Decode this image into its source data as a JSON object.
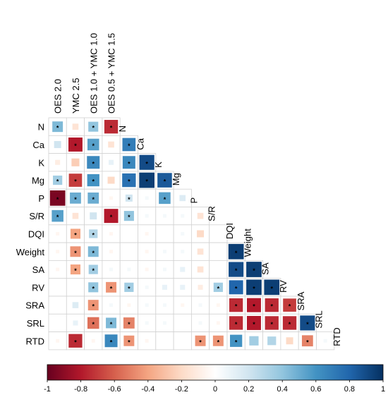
{
  "chart_data": {
    "type": "heatmap",
    "title": "",
    "treatment_labels": [
      "OES 2.0",
      "YMC 2.5",
      "OES 1.0 + YMC 1.0",
      "OES 0.5 + YMC 1.5"
    ],
    "variable_labels": [
      "N",
      "Ca",
      "K",
      "Mg",
      "P",
      "S/R",
      "DQI",
      "Weight",
      "SA",
      "RV",
      "SRA",
      "SRL",
      "RTD"
    ],
    "value_range": [
      -1,
      1
    ],
    "colorbar": {
      "ticks": [
        -1,
        -0.8,
        -0.6,
        -0.4,
        -0.2,
        0,
        0.2,
        0.4,
        0.6,
        0.8,
        1
      ],
      "tick_labels": [
        "-1",
        "-0.8",
        "-0.6",
        "-0.4",
        "-0.2",
        "0",
        "0.2",
        "0.4",
        "0.6",
        "0.8",
        "1"
      ],
      "colors": [
        "#67001f",
        "#b2182b",
        "#d6604d",
        "#f4a582",
        "#fddbc7",
        "#ffffff",
        "#d1e5f0",
        "#92c5de",
        "#4393c3",
        "#2166ac",
        "#053061"
      ]
    },
    "significance_marker": "*",
    "treatment_matrix": [
      [
        {
          "v": 0.45,
          "s": true
        },
        {
          "v": -0.15,
          "s": false
        },
        {
          "v": 0.4,
          "s": true
        },
        {
          "v": -0.75,
          "s": true
        }
      ],
      [
        {
          "v": 0.2,
          "s": false
        },
        {
          "v": -0.8,
          "s": true
        },
        {
          "v": 0.55,
          "s": true
        },
        {
          "v": -0.15,
          "s": false
        }
      ],
      [
        {
          "v": -0.1,
          "s": false
        },
        {
          "v": -0.25,
          "s": false
        },
        {
          "v": 0.65,
          "s": true
        },
        {
          "v": 0.1,
          "s": false
        }
      ],
      [
        {
          "v": 0.35,
          "s": true
        },
        {
          "v": -0.7,
          "s": true
        },
        {
          "v": 0.6,
          "s": true
        },
        {
          "v": -0.2,
          "s": false
        }
      ],
      [
        {
          "v": -0.95,
          "s": true
        },
        {
          "v": 0.5,
          "s": true
        },
        {
          "v": 0.5,
          "s": true
        },
        {
          "v": -0.05,
          "s": false
        }
      ],
      [
        {
          "v": 0.55,
          "s": true
        },
        {
          "v": -0.15,
          "s": false
        },
        {
          "v": 0.2,
          "s": false
        },
        {
          "v": -0.8,
          "s": true
        }
      ],
      [
        {
          "v": -0.05,
          "s": false
        },
        {
          "v": -0.4,
          "s": true
        },
        {
          "v": 0.3,
          "s": true
        },
        {
          "v": -0.05,
          "s": false
        }
      ],
      [
        {
          "v": -0.05,
          "s": false
        },
        {
          "v": -0.45,
          "s": true
        },
        {
          "v": 0.45,
          "s": true
        },
        {
          "v": -0.05,
          "s": false
        }
      ],
      [
        {
          "v": -0.05,
          "s": false
        },
        {
          "v": -0.4,
          "s": true
        },
        {
          "v": 0.35,
          "s": true
        },
        {
          "v": 0.05,
          "s": false
        }
      ],
      [
        {
          "v": 0.0,
          "s": false
        },
        {
          "v": 0.0,
          "s": false
        },
        {
          "v": 0.4,
          "s": true
        },
        {
          "v": -0.45,
          "s": true
        }
      ],
      [
        {
          "v": 0.0,
          "s": false
        },
        {
          "v": 0.15,
          "s": false
        },
        {
          "v": -0.45,
          "s": true
        },
        {
          "v": 0.05,
          "s": false
        }
      ],
      [
        {
          "v": 0.0,
          "s": false
        },
        {
          "v": 0.1,
          "s": false
        },
        {
          "v": -0.55,
          "s": true
        },
        {
          "v": 0.45,
          "s": true
        }
      ],
      [
        {
          "v": -0.05,
          "s": false
        },
        {
          "v": -0.75,
          "s": true
        },
        {
          "v": -0.05,
          "s": false
        },
        {
          "v": 0.65,
          "s": true
        }
      ]
    ],
    "variable_matrix": [
      [],
      [
        {
          "v": 0.7,
          "s": true
        }
      ],
      [
        {
          "v": 0.65,
          "s": true
        },
        {
          "v": 0.9,
          "s": true
        }
      ],
      [
        {
          "v": 0.75,
          "s": true
        },
        {
          "v": 0.95,
          "s": true
        },
        {
          "v": 0.85,
          "s": true
        }
      ],
      [
        {
          "v": 0.2,
          "s": true
        },
        {
          "v": 0.05,
          "s": false
        },
        {
          "v": 0.55,
          "s": true
        },
        {
          "v": 0.15,
          "s": false
        }
      ],
      [
        {
          "v": 0.4,
          "s": true
        },
        {
          "v": 0.05,
          "s": false
        },
        {
          "v": 0.05,
          "s": false
        },
        {
          "v": 0.05,
          "s": false
        },
        {
          "v": -0.15,
          "s": false
        }
      ],
      [
        {
          "v": 0.0,
          "s": false
        },
        {
          "v": -0.05,
          "s": false
        },
        {
          "v": 0.0,
          "s": false
        },
        {
          "v": 0.05,
          "s": false
        },
        {
          "v": -0.2,
          "s": false
        },
        {
          "v": 0.0,
          "s": false
        }
      ],
      [
        {
          "v": 0.0,
          "s": false
        },
        {
          "v": -0.05,
          "s": false
        },
        {
          "v": 0.05,
          "s": false
        },
        {
          "v": 0.05,
          "s": false
        },
        {
          "v": -0.15,
          "s": false
        },
        {
          "v": 0.0,
          "s": false
        },
        {
          "v": 0.95,
          "s": true
        }
      ],
      [
        {
          "v": 0.05,
          "s": false
        },
        {
          "v": -0.05,
          "s": false
        },
        {
          "v": 0.05,
          "s": false
        },
        {
          "v": 0.1,
          "s": false
        },
        {
          "v": -0.15,
          "s": false
        },
        {
          "v": 0.0,
          "s": false
        },
        {
          "v": 0.9,
          "s": true
        },
        {
          "v": 0.95,
          "s": true
        }
      ],
      [
        {
          "v": 0.35,
          "s": true
        },
        {
          "v": 0.05,
          "s": false
        },
        {
          "v": 0.1,
          "s": false
        },
        {
          "v": 0.1,
          "s": false
        },
        {
          "v": -0.1,
          "s": false
        },
        {
          "v": 0.35,
          "s": true
        },
        {
          "v": 0.8,
          "s": true
        },
        {
          "v": 0.95,
          "s": true
        },
        {
          "v": 0.95,
          "s": true
        }
      ],
      [
        {
          "v": -0.05,
          "s": false
        },
        {
          "v": 0.05,
          "s": false
        },
        {
          "v": 0.05,
          "s": false
        },
        {
          "v": -0.05,
          "s": false
        },
        {
          "v": 0.05,
          "s": false
        },
        {
          "v": -0.05,
          "s": false
        },
        {
          "v": -0.75,
          "s": true
        },
        {
          "v": -0.8,
          "s": true
        },
        {
          "v": -0.75,
          "s": true
        },
        {
          "v": -0.7,
          "s": true
        }
      ],
      [
        {
          "v": -0.5,
          "s": true
        },
        {
          "v": 0.05,
          "s": false
        },
        {
          "v": 0.05,
          "s": false
        },
        {
          "v": 0.0,
          "s": false
        },
        {
          "v": 0.05,
          "s": false
        },
        {
          "v": -0.05,
          "s": false
        },
        {
          "v": -0.75,
          "s": true
        },
        {
          "v": -0.8,
          "s": true
        },
        {
          "v": -0.75,
          "s": true
        },
        {
          "v": -0.75,
          "s": true
        },
        {
          "v": 0.9,
          "s": true
        }
      ],
      [
        {
          "v": -0.45,
          "s": true
        },
        {
          "v": -0.05,
          "s": false
        },
        {
          "v": 0.0,
          "s": false
        },
        {
          "v": 0.0,
          "s": false
        },
        {
          "v": -0.45,
          "s": true
        },
        {
          "v": -0.45,
          "s": true
        },
        {
          "v": 0.6,
          "s": true
        },
        {
          "v": 0.35,
          "s": false
        },
        {
          "v": 0.3,
          "s": false
        },
        {
          "v": -0.2,
          "s": false
        },
        {
          "v": -0.5,
          "s": true
        },
        {
          "v": 0.05,
          "s": false
        }
      ]
    ]
  }
}
